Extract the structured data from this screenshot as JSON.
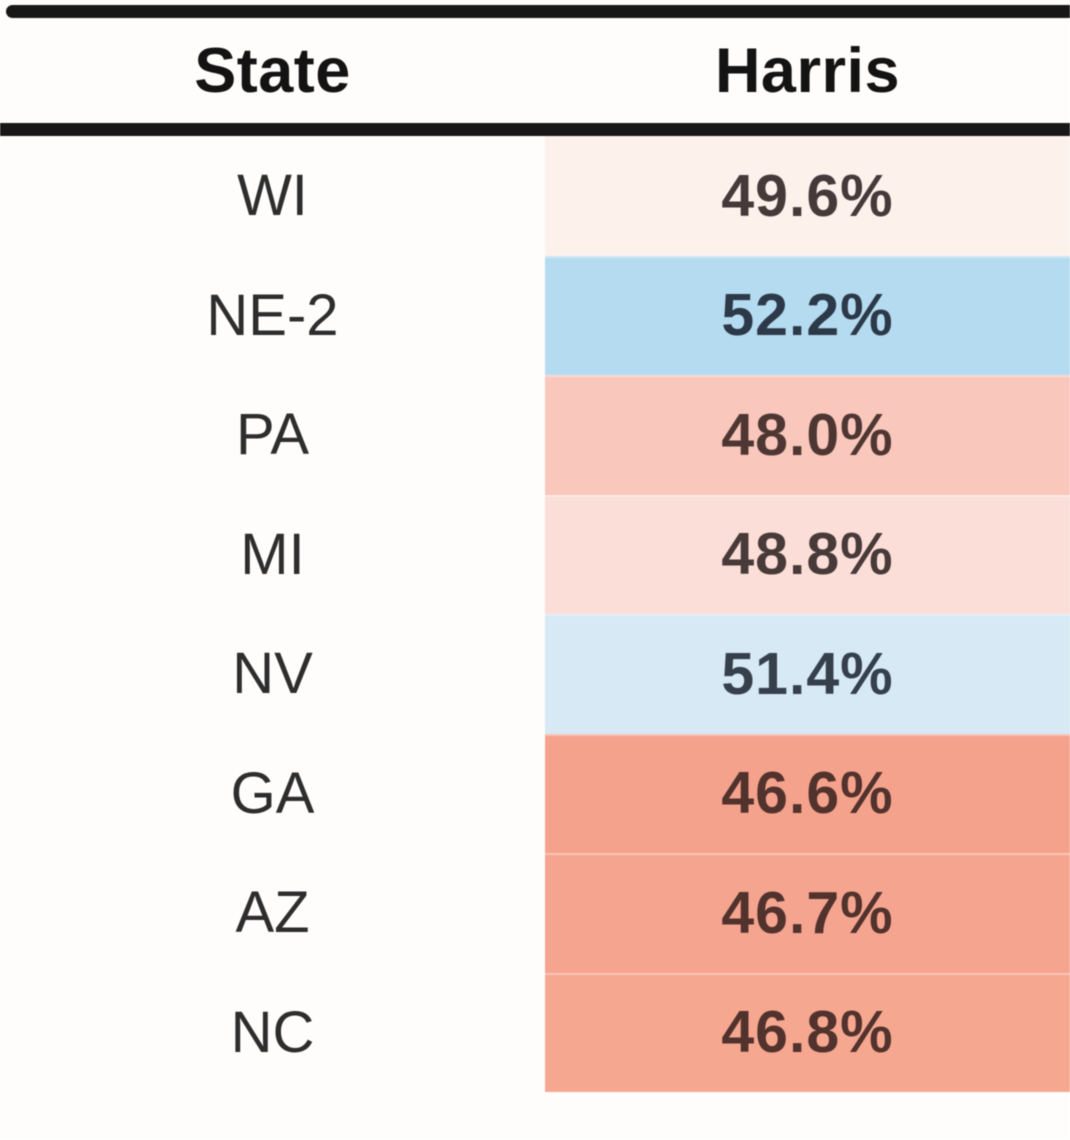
{
  "chart_data": {
    "type": "table",
    "columns": [
      "State",
      "Harris"
    ],
    "rows": [
      {
        "state": "WI",
        "harris": "49.6%",
        "harris_value": 49.6,
        "bg": "#fdf1ec",
        "text_color": "#45393a"
      },
      {
        "state": "NE-2",
        "harris": "52.2%",
        "harris_value": 52.2,
        "bg": "#b5dbf0",
        "text_color": "#2c3948"
      },
      {
        "state": "PA",
        "harris": "48.0%",
        "harris_value": 48.0,
        "bg": "#f9c7bc",
        "text_color": "#4e3733"
      },
      {
        "state": "MI",
        "harris": "48.8%",
        "harris_value": 48.8,
        "bg": "#fbded7",
        "text_color": "#473a39"
      },
      {
        "state": "NV",
        "harris": "51.4%",
        "harris_value": 51.4,
        "bg": "#d6e9f5",
        "text_color": "#36404d"
      },
      {
        "state": "GA",
        "harris": "46.6%",
        "harris_value": 46.6,
        "bg": "#f5a28c",
        "text_color": "#51322d"
      },
      {
        "state": "AZ",
        "harris": "46.7%",
        "harris_value": 46.7,
        "bg": "#f5a58f",
        "text_color": "#51322d"
      },
      {
        "state": "NC",
        "harris": "46.8%",
        "harris_value": 46.8,
        "bg": "#f6a78f",
        "text_color": "#51322d"
      }
    ],
    "colors": {
      "rule": "#171717",
      "lead_blue": "#b5dbf0",
      "trail_red": "#f5a28c",
      "background": "#fefdfc"
    }
  }
}
